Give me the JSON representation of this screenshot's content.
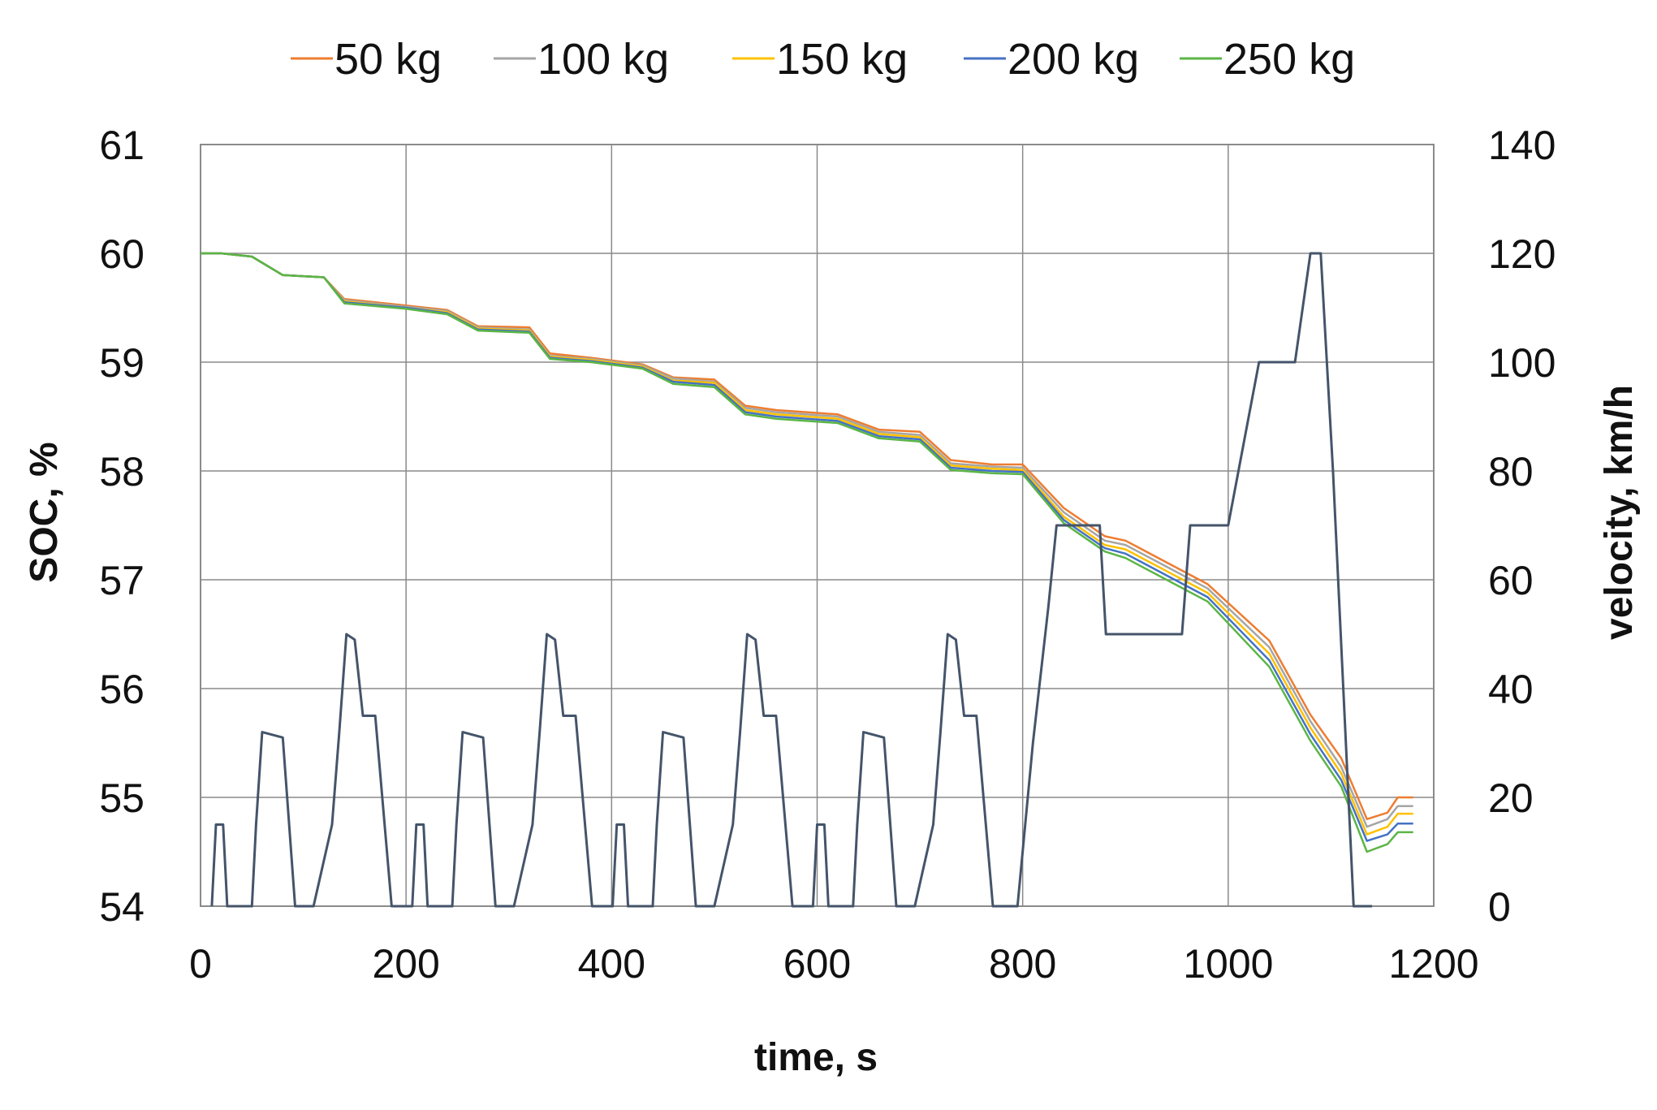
{
  "chart_data": {
    "type": "line",
    "title": "",
    "xlabel": "time, s",
    "ylabel": "SOC, %",
    "y2label": "velocity, km/h",
    "xlim": [
      0,
      1200
    ],
    "ylim": [
      54,
      61
    ],
    "y2lim": [
      0,
      140
    ],
    "x_ticks": [
      "0",
      "200",
      "400",
      "600",
      "800",
      "1000",
      "1200"
    ],
    "y_ticks": [
      "54",
      "55",
      "56",
      "57",
      "58",
      "59",
      "60",
      "61"
    ],
    "y2_ticks": [
      "0",
      "20",
      "40",
      "60",
      "80",
      "100",
      "120",
      "140"
    ],
    "grid": true,
    "legend_position": "top",
    "series": [
      {
        "name": "50 kg",
        "color": "#ED7D31",
        "axis": "left",
        "points": [
          [
            0,
            60
          ],
          [
            20,
            60
          ],
          [
            50,
            59.97
          ],
          [
            80,
            59.8
          ],
          [
            120,
            59.78
          ],
          [
            140,
            59.58
          ],
          [
            200,
            59.52
          ],
          [
            240,
            59.48
          ],
          [
            270,
            59.33
          ],
          [
            320,
            59.32
          ],
          [
            340,
            59.08
          ],
          [
            380,
            59.04
          ],
          [
            430,
            58.98
          ],
          [
            460,
            58.86
          ],
          [
            500,
            58.84
          ],
          [
            530,
            58.6
          ],
          [
            560,
            58.56
          ],
          [
            620,
            58.52
          ],
          [
            660,
            58.38
          ],
          [
            700,
            58.36
          ],
          [
            730,
            58.1
          ],
          [
            770,
            58.06
          ],
          [
            800,
            58.06
          ],
          [
            840,
            57.66
          ],
          [
            880,
            57.4
          ],
          [
            900,
            57.36
          ],
          [
            940,
            57.16
          ],
          [
            980,
            56.96
          ],
          [
            1040,
            56.44
          ],
          [
            1080,
            55.76
          ],
          [
            1110,
            55.36
          ],
          [
            1135,
            54.8
          ],
          [
            1155,
            54.86
          ],
          [
            1165,
            55
          ],
          [
            1180,
            55
          ]
        ]
      },
      {
        "name": "100 kg",
        "color": "#A5A5A5",
        "axis": "left",
        "points": [
          [
            0,
            60
          ],
          [
            20,
            60
          ],
          [
            50,
            59.97
          ],
          [
            80,
            59.8
          ],
          [
            120,
            59.78
          ],
          [
            140,
            59.57
          ],
          [
            200,
            59.51
          ],
          [
            240,
            59.47
          ],
          [
            270,
            59.32
          ],
          [
            320,
            59.3
          ],
          [
            340,
            59.06
          ],
          [
            380,
            59.03
          ],
          [
            430,
            58.97
          ],
          [
            460,
            58.85
          ],
          [
            500,
            58.82
          ],
          [
            530,
            58.58
          ],
          [
            560,
            58.54
          ],
          [
            620,
            58.5
          ],
          [
            660,
            58.36
          ],
          [
            700,
            58.33
          ],
          [
            730,
            58.07
          ],
          [
            770,
            58.04
          ],
          [
            800,
            58.03
          ],
          [
            840,
            57.62
          ],
          [
            880,
            57.36
          ],
          [
            900,
            57.32
          ],
          [
            940,
            57.12
          ],
          [
            980,
            56.92
          ],
          [
            1040,
            56.38
          ],
          [
            1080,
            55.7
          ],
          [
            1110,
            55.28
          ],
          [
            1135,
            54.73
          ],
          [
            1155,
            54.8
          ],
          [
            1165,
            54.92
          ],
          [
            1180,
            54.92
          ]
        ]
      },
      {
        "name": "150 kg",
        "color": "#FFC000",
        "axis": "left",
        "points": [
          [
            0,
            60
          ],
          [
            20,
            60
          ],
          [
            50,
            59.97
          ],
          [
            80,
            59.8
          ],
          [
            120,
            59.78
          ],
          [
            140,
            59.56
          ],
          [
            200,
            59.5
          ],
          [
            240,
            59.46
          ],
          [
            270,
            59.31
          ],
          [
            320,
            59.29
          ],
          [
            340,
            59.05
          ],
          [
            380,
            59.02
          ],
          [
            430,
            58.96
          ],
          [
            460,
            58.83
          ],
          [
            500,
            58.81
          ],
          [
            530,
            58.56
          ],
          [
            560,
            58.52
          ],
          [
            620,
            58.48
          ],
          [
            660,
            58.34
          ],
          [
            700,
            58.31
          ],
          [
            730,
            58.05
          ],
          [
            770,
            58.02
          ],
          [
            800,
            58.01
          ],
          [
            840,
            57.58
          ],
          [
            880,
            57.32
          ],
          [
            900,
            57.28
          ],
          [
            940,
            57.08
          ],
          [
            980,
            56.88
          ],
          [
            1040,
            56.32
          ],
          [
            1080,
            55.64
          ],
          [
            1110,
            55.22
          ],
          [
            1135,
            54.66
          ],
          [
            1155,
            54.73
          ],
          [
            1165,
            54.85
          ],
          [
            1180,
            54.85
          ]
        ]
      },
      {
        "name": "200 kg",
        "color": "#4472C4",
        "axis": "left",
        "points": [
          [
            0,
            60
          ],
          [
            20,
            60
          ],
          [
            50,
            59.97
          ],
          [
            80,
            59.8
          ],
          [
            120,
            59.78
          ],
          [
            140,
            59.55
          ],
          [
            200,
            59.5
          ],
          [
            240,
            59.45
          ],
          [
            270,
            59.3
          ],
          [
            320,
            59.28
          ],
          [
            340,
            59.04
          ],
          [
            380,
            59.01
          ],
          [
            430,
            58.95
          ],
          [
            460,
            58.82
          ],
          [
            500,
            58.79
          ],
          [
            530,
            58.54
          ],
          [
            560,
            58.5
          ],
          [
            620,
            58.46
          ],
          [
            660,
            58.32
          ],
          [
            700,
            58.29
          ],
          [
            730,
            58.03
          ],
          [
            770,
            58
          ],
          [
            800,
            57.99
          ],
          [
            840,
            57.55
          ],
          [
            880,
            57.29
          ],
          [
            900,
            57.24
          ],
          [
            940,
            57.04
          ],
          [
            980,
            56.84
          ],
          [
            1040,
            56.26
          ],
          [
            1080,
            55.58
          ],
          [
            1110,
            55.16
          ],
          [
            1135,
            54.6
          ],
          [
            1155,
            54.66
          ],
          [
            1165,
            54.76
          ],
          [
            1180,
            54.76
          ]
        ]
      },
      {
        "name": "250 kg",
        "color": "#5BB545",
        "axis": "left",
        "points": [
          [
            0,
            60
          ],
          [
            20,
            60
          ],
          [
            50,
            59.97
          ],
          [
            80,
            59.8
          ],
          [
            120,
            59.78
          ],
          [
            140,
            59.54
          ],
          [
            200,
            59.49
          ],
          [
            240,
            59.44
          ],
          [
            270,
            59.29
          ],
          [
            320,
            59.27
          ],
          [
            340,
            59.03
          ],
          [
            380,
            59
          ],
          [
            430,
            58.94
          ],
          [
            460,
            58.8
          ],
          [
            500,
            58.77
          ],
          [
            530,
            58.52
          ],
          [
            560,
            58.48
          ],
          [
            620,
            58.44
          ],
          [
            660,
            58.3
          ],
          [
            700,
            58.27
          ],
          [
            730,
            58.01
          ],
          [
            770,
            57.98
          ],
          [
            800,
            57.97
          ],
          [
            840,
            57.52
          ],
          [
            880,
            57.26
          ],
          [
            900,
            57.2
          ],
          [
            940,
            57
          ],
          [
            980,
            56.8
          ],
          [
            1040,
            56.2
          ],
          [
            1080,
            55.52
          ],
          [
            1110,
            55.1
          ],
          [
            1135,
            54.5
          ],
          [
            1155,
            54.57
          ],
          [
            1165,
            54.68
          ],
          [
            1180,
            54.68
          ]
        ]
      },
      {
        "name": "",
        "color": "#44546A",
        "axis": "right",
        "points": [
          [
            11,
            0
          ],
          [
            15,
            15
          ],
          [
            22,
            15
          ],
          [
            26,
            0
          ],
          [
            50,
            0
          ],
          [
            54,
            15
          ],
          [
            60,
            32
          ],
          [
            80,
            31
          ],
          [
            92,
            0
          ],
          [
            110,
            0
          ],
          [
            128,
            15
          ],
          [
            135,
            32
          ],
          [
            142,
            50
          ],
          [
            150,
            49
          ],
          [
            158,
            35
          ],
          [
            170,
            35
          ],
          [
            186,
            0
          ],
          [
            206,
            0
          ],
          [
            210,
            15
          ],
          [
            217,
            15
          ],
          [
            221,
            0
          ],
          [
            245,
            0
          ],
          [
            249,
            15
          ],
          [
            255,
            32
          ],
          [
            275,
            31
          ],
          [
            287,
            0
          ],
          [
            305,
            0
          ],
          [
            323,
            15
          ],
          [
            330,
            32
          ],
          [
            337,
            50
          ],
          [
            345,
            49
          ],
          [
            353,
            35
          ],
          [
            365,
            35
          ],
          [
            381,
            0
          ],
          [
            401,
            0
          ],
          [
            405,
            15
          ],
          [
            412,
            15
          ],
          [
            416,
            0
          ],
          [
            440,
            0
          ],
          [
            444,
            15
          ],
          [
            450,
            32
          ],
          [
            470,
            31
          ],
          [
            482,
            0
          ],
          [
            500,
            0
          ],
          [
            518,
            15
          ],
          [
            525,
            32
          ],
          [
            532,
            50
          ],
          [
            540,
            49
          ],
          [
            548,
            35
          ],
          [
            560,
            35
          ],
          [
            576,
            0
          ],
          [
            596,
            0
          ],
          [
            600,
            15
          ],
          [
            607,
            15
          ],
          [
            611,
            0
          ],
          [
            635,
            0
          ],
          [
            639,
            15
          ],
          [
            645,
            32
          ],
          [
            665,
            31
          ],
          [
            677,
            0
          ],
          [
            695,
            0
          ],
          [
            713,
            15
          ],
          [
            720,
            32
          ],
          [
            727,
            50
          ],
          [
            735,
            49
          ],
          [
            743,
            35
          ],
          [
            755,
            35
          ],
          [
            771,
            0
          ],
          [
            795,
            0
          ],
          [
            810,
            30
          ],
          [
            825,
            55
          ],
          [
            833,
            70
          ],
          [
            875,
            70
          ],
          [
            881,
            50
          ],
          [
            955,
            50
          ],
          [
            963,
            70
          ],
          [
            1000,
            70
          ],
          [
            1030,
            100
          ],
          [
            1065,
            100
          ],
          [
            1080,
            120
          ],
          [
            1090,
            120
          ],
          [
            1102,
            80
          ],
          [
            1122,
            0
          ],
          [
            1140,
            0
          ]
        ]
      }
    ]
  }
}
